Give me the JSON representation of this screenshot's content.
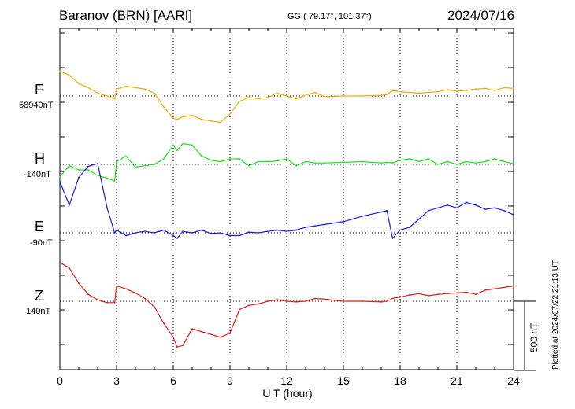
{
  "header": {
    "station": "Baranov (BRN)  [AARI]",
    "coords": "GG ( 79.17°, 101.37°)",
    "date": "2024/07/16"
  },
  "footer": "Plotted at 2024/07/22 21:13 UT",
  "scale_label": "500 nT",
  "colors": {
    "F": "#f5a800",
    "H": "#22dd22",
    "E": "#1a1ae6",
    "Z": "#e61a1a"
  },
  "chart_data": {
    "type": "line",
    "xlabel": "U T (hour)",
    "xlim": [
      0,
      24
    ],
    "xticks": [
      "0",
      "3",
      "6",
      "9",
      "12",
      "15",
      "18",
      "21",
      "24"
    ],
    "grid": true,
    "scale_bar_nT": 500,
    "x": [
      0,
      0.5,
      1,
      1.5,
      2,
      2.5,
      2.9,
      3,
      3.5,
      4,
      4.5,
      5,
      5.5,
      6,
      6.2,
      6.5,
      7,
      7.5,
      8,
      8.5,
      9,
      9.5,
      10,
      10.5,
      11,
      11.5,
      12,
      12.5,
      13,
      13.5,
      14,
      15,
      16,
      17,
      17.3,
      17.6,
      18,
      18.5,
      19,
      19.5,
      20,
      20.5,
      21,
      21.5,
      22,
      22.5,
      23,
      23.5,
      24
    ],
    "series": [
      {
        "name": "F",
        "baseline": "58940nT",
        "values": [
          180,
          150,
          90,
          60,
          20,
          0,
          -20,
          50,
          70,
          60,
          50,
          20,
          -80,
          -160,
          -170,
          -150,
          -140,
          -170,
          -180,
          -190,
          -130,
          -40,
          -10,
          -20,
          -10,
          20,
          0,
          -20,
          5,
          25,
          -5,
          0,
          0,
          5,
          10,
          40,
          30,
          25,
          20,
          25,
          30,
          45,
          35,
          40,
          50,
          55,
          40,
          60,
          55
        ]
      },
      {
        "name": "H",
        "baseline": "-140nT",
        "values": [
          -90,
          -10,
          -40,
          -40,
          -80,
          -100,
          -120,
          20,
          60,
          -20,
          -10,
          0,
          40,
          140,
          100,
          150,
          140,
          60,
          30,
          20,
          40,
          40,
          -10,
          20,
          20,
          25,
          40,
          -10,
          20,
          10,
          10,
          15,
          20,
          10,
          15,
          10,
          30,
          40,
          20,
          40,
          0,
          20,
          0,
          20,
          10,
          20,
          40,
          20,
          5
        ]
      },
      {
        "name": "E",
        "baseline": "-90nT",
        "values": [
          370,
          200,
          400,
          480,
          500,
          180,
          0,
          20,
          -20,
          0,
          10,
          0,
          20,
          -20,
          -40,
          10,
          0,
          20,
          -5,
          0,
          -20,
          -20,
          5,
          0,
          10,
          20,
          10,
          20,
          40,
          50,
          60,
          80,
          120,
          150,
          160,
          -40,
          20,
          40,
          100,
          160,
          180,
          200,
          180,
          220,
          200,
          170,
          180,
          160,
          130
        ]
      },
      {
        "name": "Z",
        "baseline": "140nT",
        "values": [
          280,
          240,
          130,
          50,
          10,
          -10,
          -10,
          110,
          90,
          60,
          20,
          -40,
          -160,
          -260,
          -330,
          -320,
          -200,
          -220,
          -240,
          -260,
          -230,
          -60,
          -30,
          -20,
          0,
          10,
          0,
          -5,
          0,
          20,
          15,
          0,
          0,
          -5,
          0,
          20,
          30,
          45,
          55,
          40,
          50,
          55,
          60,
          65,
          50,
          80,
          90,
          100,
          110
        ]
      }
    ]
  }
}
